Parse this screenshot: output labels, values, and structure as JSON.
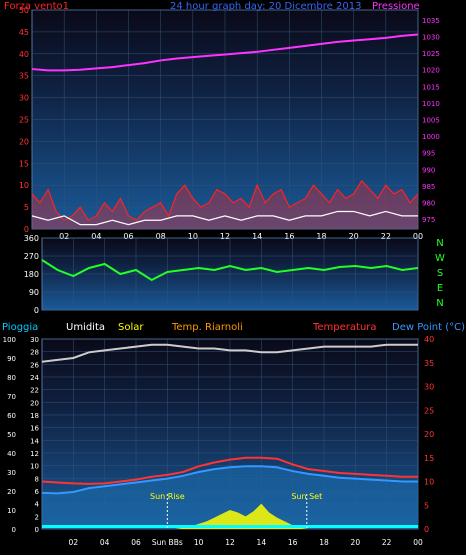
{
  "colors": {
    "wind": "#ff2222",
    "gust_white": "#ffffff",
    "pressure": "#ff33ff",
    "direction": "#22ff22",
    "humidity": "#cccccc",
    "temperature": "#ff3333",
    "dewpoint": "#3399ff",
    "solar": "#ffff00",
    "rain": "#00ffff",
    "axis_left": "#ff3333",
    "axis_pressure": "#ff33ff",
    "header_blue": "#3366ff",
    "grid": "#335577"
  },
  "chart_data": [
    {
      "type": "line",
      "header": {
        "left": "Forza vento1",
        "center": "24 hour graph day:  20 Dicembre 2013",
        "right": "Pressione"
      },
      "x_ticks": [
        "02",
        "04",
        "06",
        "08",
        "10",
        "12",
        "14",
        "16",
        "18",
        "20",
        "22",
        "00"
      ],
      "y_left": {
        "ticks": [
          "0",
          "5",
          "10",
          "15",
          "20",
          "25",
          "30",
          "35",
          "40",
          "45",
          "50"
        ],
        "lim": [
          0,
          50
        ]
      },
      "y_right": {
        "ticks": [
          "975",
          "980",
          "985",
          "990",
          "995",
          "1000",
          "1005",
          "1010",
          "1015",
          "1020",
          "1025",
          "1030",
          "1035"
        ],
        "lim": [
          972,
          1038
        ]
      },
      "series": [
        {
          "key": "pressure",
          "x": [
            0,
            1,
            2,
            3,
            4,
            5,
            6,
            7,
            8,
            9,
            10,
            11,
            12,
            13,
            14,
            15,
            16,
            17,
            18,
            19,
            20,
            21,
            22,
            23,
            24
          ],
          "values": [
            1020.2,
            1019.8,
            1019.8,
            1020.0,
            1020.4,
            1020.8,
            1021.4,
            1022.0,
            1022.8,
            1023.4,
            1023.8,
            1024.2,
            1024.6,
            1025.0,
            1025.4,
            1026.0,
            1026.6,
            1027.2,
            1027.8,
            1028.4,
            1028.8,
            1029.2,
            1029.6,
            1030.2,
            1030.6
          ]
        },
        {
          "key": "wind",
          "x": [
            0,
            0.5,
            1,
            1.5,
            2,
            2.5,
            3,
            3.5,
            4,
            4.5,
            5,
            5.5,
            6,
            6.5,
            7,
            7.5,
            8,
            8.5,
            9,
            9.5,
            10,
            10.5,
            11,
            11.5,
            12,
            12.5,
            13,
            13.5,
            14,
            14.5,
            15,
            15.5,
            16,
            16.5,
            17,
            17.5,
            18,
            18.5,
            19,
            19.5,
            20,
            20.5,
            21,
            21.5,
            22,
            22.5,
            23,
            23.5,
            24
          ],
          "values": [
            8,
            6,
            9,
            4,
            2,
            3,
            5,
            2,
            3,
            6,
            4,
            7,
            3,
            2,
            4,
            5,
            6,
            3,
            8,
            10,
            7,
            5,
            6,
            9,
            8,
            6,
            7,
            5,
            10,
            6,
            8,
            9,
            5,
            6,
            7,
            10,
            8,
            6,
            9,
            7,
            8,
            11,
            9,
            7,
            10,
            8,
            9,
            6,
            8
          ]
        },
        {
          "key": "gust_white",
          "x": [
            0,
            1,
            2,
            3,
            4,
            5,
            6,
            7,
            8,
            9,
            10,
            11,
            12,
            13,
            14,
            15,
            16,
            17,
            18,
            19,
            20,
            21,
            22,
            23,
            24
          ],
          "values": [
            3,
            2,
            3,
            1,
            1,
            2,
            1,
            2,
            2,
            3,
            3,
            2,
            3,
            2,
            3,
            3,
            2,
            3,
            3,
            4,
            4,
            3,
            4,
            3,
            3
          ]
        }
      ]
    },
    {
      "type": "scatter",
      "y_left": {
        "ticks": [
          "0",
          "90",
          "180",
          "270",
          "360"
        ],
        "lim": [
          0,
          360
        ]
      },
      "compass": [
        "N",
        "W",
        "S",
        "E",
        "N"
      ],
      "series": [
        {
          "key": "direction",
          "x": [
            0,
            1,
            2,
            3,
            4,
            5,
            6,
            7,
            8,
            9,
            10,
            11,
            12,
            13,
            14,
            15,
            16,
            17,
            18,
            19,
            20,
            21,
            22,
            23,
            24
          ],
          "values": [
            250,
            200,
            170,
            210,
            230,
            180,
            200,
            150,
            190,
            200,
            210,
            200,
            220,
            200,
            210,
            190,
            200,
            210,
            200,
            215,
            220,
            210,
            220,
            200,
            210
          ]
        }
      ]
    },
    {
      "type": "area",
      "legend": [
        "Pioggia",
        "Umidita",
        "Solar",
        "Temp. Riarnoli",
        "Temperatura",
        "Dew Point (°C)"
      ],
      "x_ticks": [
        "02",
        "04",
        "06",
        "Sun BBs",
        "10",
        "12",
        "14",
        "16",
        "18",
        "20",
        "22",
        "00"
      ],
      "y_left": {
        "ticks": [
          "0",
          "10",
          "20",
          "30",
          "40",
          "50",
          "60",
          "70",
          "80",
          "90",
          "100"
        ],
        "lim": [
          0,
          100
        ]
      },
      "y_mid": {
        "ticks": [
          "0",
          "2",
          "4",
          "6",
          "8",
          "10",
          "12",
          "14",
          "16",
          "18",
          "20",
          "22",
          "24",
          "26",
          "28",
          "30"
        ],
        "lim": [
          0,
          30
        ]
      },
      "y_right": {
        "ticks": [
          "0",
          "5",
          "10",
          "15",
          "20",
          "25",
          "30",
          "35",
          "40"
        ],
        "lim": [
          0,
          40
        ]
      },
      "annotations": [
        {
          "label": "Sun Rise",
          "x": 8.0
        },
        {
          "label": "Sun Set",
          "x": 16.9
        }
      ],
      "series": [
        {
          "key": "humidity",
          "x": [
            0,
            1,
            2,
            3,
            4,
            5,
            6,
            7,
            8,
            9,
            10,
            11,
            12,
            13,
            14,
            15,
            16,
            17,
            18,
            19,
            20,
            21,
            22,
            23,
            24
          ],
          "values": [
            88,
            89,
            90,
            93,
            94,
            95,
            96,
            97,
            97,
            96,
            95,
            95,
            94,
            94,
            93,
            93,
            94,
            95,
            96,
            96,
            96,
            96,
            97,
            97,
            97
          ]
        },
        {
          "key": "temperature",
          "x": [
            0,
            1,
            2,
            3,
            4,
            5,
            6,
            7,
            8,
            9,
            10,
            11,
            12,
            13,
            14,
            15,
            16,
            17,
            18,
            19,
            20,
            21,
            22,
            23,
            24
          ],
          "values": [
            10,
            9.8,
            9.6,
            9.5,
            9.6,
            10,
            10.4,
            11,
            11.4,
            12,
            13.2,
            14,
            14.6,
            15,
            15,
            14.8,
            13.6,
            12.6,
            12.2,
            11.8,
            11.6,
            11.4,
            11.2,
            11.0,
            11.0
          ]
        },
        {
          "key": "dewpoint",
          "x": [
            0,
            1,
            2,
            3,
            4,
            5,
            6,
            7,
            8,
            9,
            10,
            11,
            12,
            13,
            14,
            15,
            16,
            17,
            18,
            19,
            20,
            21,
            22,
            23,
            24
          ],
          "values": [
            7.6,
            7.5,
            7.8,
            8.6,
            9.0,
            9.4,
            9.8,
            10.2,
            10.6,
            11.2,
            12,
            12.6,
            13,
            13.2,
            13.2,
            13.0,
            12.2,
            11.6,
            11.2,
            10.8,
            10.6,
            10.4,
            10.2,
            10.0,
            10.0
          ]
        },
        {
          "key": "solar",
          "x": [
            8,
            8.5,
            9,
            9.5,
            10,
            10.5,
            11,
            11.5,
            12,
            12.5,
            13,
            13.5,
            14,
            14.5,
            15,
            15.5,
            16,
            16.5,
            17
          ],
          "values": [
            0,
            0,
            1,
            2,
            4,
            6,
            9,
            12,
            15,
            13,
            10,
            14,
            20,
            13,
            9,
            6,
            3,
            1,
            0
          ]
        },
        {
          "key": "rain",
          "x": [
            0,
            24
          ],
          "values": [
            0.4,
            0.4
          ]
        }
      ]
    }
  ]
}
